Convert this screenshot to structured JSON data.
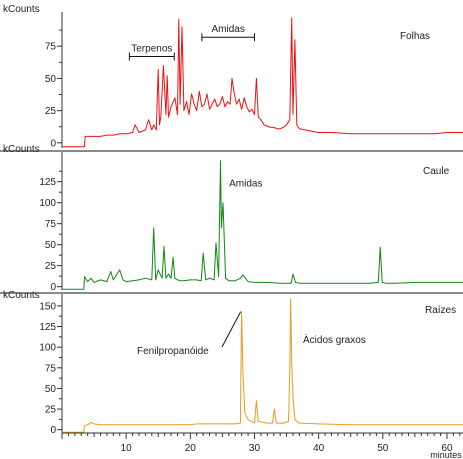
{
  "chart_data": {
    "type": "line",
    "xlabel": "minutes",
    "x_ticks": [
      10,
      20,
      30,
      40,
      50,
      60
    ],
    "xlim": [
      0,
      62.5
    ],
    "panels": [
      {
        "label": "Folhas",
        "ylabel": "kCounts",
        "ylim": [
          -4,
          100
        ],
        "y_ticks": [
          0,
          25,
          50,
          75
        ],
        "color": "#ee1111",
        "annotations": [
          {
            "text": "Terpenos",
            "x_range": [
              10.5,
              17.5
            ],
            "y": 67
          },
          {
            "text": "Amidas",
            "x_range": [
              21.8,
              30.0
            ],
            "y": 82
          }
        ],
        "series": [
          {
            "x": [
              0,
              3.5,
              3.6,
              4,
              5,
              6,
              7,
              8,
              9,
              10,
              11,
              11.4,
              12,
              13,
              13.5,
              14,
              14.3,
              14.7,
              15.0,
              15.2,
              15.4,
              15.8,
              16.2,
              16.4,
              16.6,
              17.0,
              17.6,
              18.0,
              18.2,
              18.4,
              18.7,
              19.0,
              19.4,
              19.8,
              20.2,
              20.6,
              21.0,
              21.4,
              21.8,
              22.2,
              22.6,
              23.0,
              23.4,
              23.8,
              24.2,
              24.6,
              25.0,
              25.4,
              25.8,
              26.2,
              26.5,
              26.8,
              27.2,
              27.6,
              28.0,
              28.4,
              28.8,
              29.2,
              29.6,
              30.0,
              30.3,
              30.6,
              31.0,
              31.5,
              32.0,
              32.5,
              33.0,
              33.5,
              34.0,
              34.5,
              35.0,
              35.5,
              35.8,
              36.0,
              36.3,
              36.6,
              37.0,
              38.0,
              39.0,
              40.0,
              42.0,
              45.0,
              48.0,
              50.0,
              52.0,
              55.0,
              58.0,
              60.0,
              62.5
            ],
            "y": [
              -3,
              -3,
              5,
              5,
              5,
              5,
              6,
              6,
              7,
              7,
              8,
              14,
              8,
              10,
              18,
              10,
              14,
              10,
              57,
              14,
              20,
              60,
              22,
              52,
              20,
              28,
              35,
              22,
              96,
              30,
              90,
              25,
              32,
              22,
              38,
              30,
              25,
              40,
              28,
              30,
              38,
              26,
              30,
              34,
              28,
              30,
              36,
              28,
              32,
              30,
              50,
              40,
              30,
              34,
              26,
              35,
              28,
              24,
              26,
              22,
              50,
              20,
              18,
              14,
              13,
              12,
              12,
              11,
              11,
              12,
              14,
              18,
              97,
              22,
              80,
              14,
              11,
              10,
              9,
              8,
              8,
              7,
              7,
              7,
              7,
              7,
              7,
              8,
              8
            ]
          }
        ]
      },
      {
        "label": "Caule",
        "ylabel": "kCounts",
        "ylim": [
          -4,
          158
        ],
        "y_ticks": [
          0,
          25,
          50,
          75,
          100,
          125
        ],
        "color": "#118811",
        "annotations": [
          {
            "text": "Amidas",
            "x": 24.8,
            "y": 155
          }
        ],
        "series": [
          {
            "x": [
              0,
              3.4,
              3.5,
              4,
              4.5,
              5,
              6,
              7,
              7.6,
              8,
              9,
              9.5,
              10,
              11,
              12,
              13,
              14.0,
              14.3,
              14.6,
              15.0,
              15.6,
              15.9,
              16.2,
              16.6,
              17.0,
              17.3,
              17.6,
              18.0,
              18.5,
              19,
              20,
              21,
              21.7,
              22.0,
              22.4,
              23,
              23.7,
              24.0,
              24.4,
              24.7,
              24.85,
              25.1,
              25.5,
              26,
              27,
              27.8,
              28.2,
              29,
              30,
              32,
              34,
              35.7,
              36.0,
              36.4,
              37,
              38,
              40,
              45,
              48,
              49.3,
              49.6,
              49.9,
              50.5,
              52,
              55,
              58,
              62.5
            ],
            "y": [
              -3,
              -3,
              12,
              6,
              10,
              5,
              8,
              6,
              18,
              8,
              20,
              8,
              6,
              7,
              8,
              10,
              8,
              70,
              8,
              20,
              10,
              48,
              10,
              15,
              10,
              35,
              10,
              8,
              7,
              7,
              8,
              8,
              7,
              40,
              8,
              10,
              8,
              52,
              12,
              150,
              70,
              100,
              10,
              7,
              7,
              10,
              14,
              6,
              5,
              5,
              4,
              4,
              15,
              5,
              4,
              4,
              4,
              4,
              4,
              5,
              47,
              5,
              4,
              4,
              5,
              5,
              5
            ]
          }
        ]
      },
      {
        "label": "Raízes",
        "ylabel": "kCounts",
        "ylim": [
          -4,
          162
        ],
        "y_ticks": [
          0,
          25,
          50,
          75,
          100,
          125,
          150
        ],
        "color": "#ee9922",
        "annotations": [
          {
            "text": "Fenilpropanóide",
            "x": 28.0,
            "y": 143
          },
          {
            "text": "Àcidos graxos",
            "x": 36.0,
            "y": 158
          }
        ],
        "series": [
          {
            "x": [
              0,
              3.4,
              3.5,
              4.0,
              4.5,
              5.0,
              6.0,
              8,
              10,
              15,
              20,
              21,
              25,
              27,
              27.8,
              28.0,
              28.2,
              28.5,
              29,
              30.0,
              30.3,
              30.6,
              32,
              32.8,
              33.1,
              33.4,
              34.5,
              35.3,
              35.5,
              35.65,
              35.8,
              36.0,
              36.3,
              37,
              40,
              45,
              50,
              55,
              60,
              62.5
            ],
            "y": [
              -3,
              -3,
              5,
              6,
              9,
              7,
              6,
              6,
              6,
              6,
              6,
              7,
              7,
              7,
              8,
              143,
              70,
              20,
              12,
              8,
              35,
              10,
              8,
              8,
              25,
              8,
              8,
              10,
              70,
              158,
              80,
              40,
              12,
              8,
              7,
              6,
              6,
              6,
              6,
              6
            ]
          }
        ]
      }
    ]
  }
}
